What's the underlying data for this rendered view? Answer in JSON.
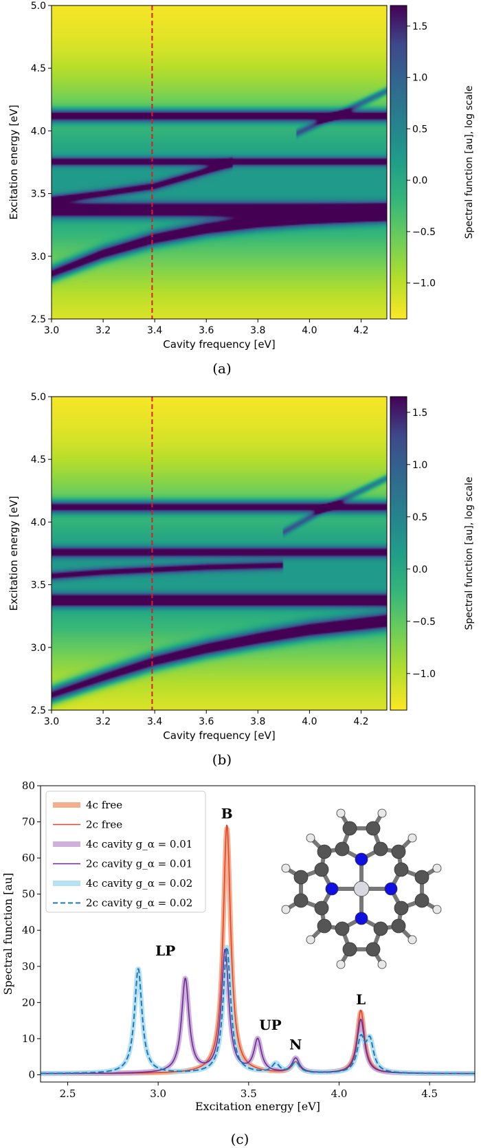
{
  "colors": {
    "viridis_dark": "#440154",
    "viridis_yellow": "#fde725",
    "free_4c": "#f0a07a",
    "free_2c": "#e8412a",
    "cavity001_4c": "#c4a2d6",
    "cavity001_2c": "#6a2b8e",
    "cavity002_4c": "#a8dcf0",
    "cavity002_2c": "#1f77b4",
    "marker_line": "#e41a1c"
  },
  "chart_data": [
    {
      "type": "heatmap",
      "panel_label": "(a)",
      "xlabel": "Cavity frequency [eV]",
      "ylabel": "Excitation energy [eV]",
      "xlim": [
        3.0,
        4.3
      ],
      "ylim": [
        2.5,
        5.0
      ],
      "xticks": [
        3.0,
        3.2,
        3.4,
        3.6,
        3.8,
        4.0,
        4.2
      ],
      "xtick_labels": [
        "3.0",
        "3.2",
        "3.4",
        "3.6",
        "3.8",
        "4.0",
        "4.2"
      ],
      "yticks": [
        2.5,
        3.0,
        3.5,
        4.0,
        4.5,
        5.0
      ],
      "ytick_labels": [
        "2.5",
        "3.0",
        "3.5",
        "4.0",
        "4.5",
        "5.0"
      ],
      "vertical_marker_x": 3.39,
      "colorbar": {
        "label": "Spectral function [au], log scale",
        "range": [
          -1.35,
          1.7
        ],
        "ticks": [
          -1.0,
          -0.5,
          0.0,
          0.5,
          1.0,
          1.5
        ],
        "tick_labels": [
          "−1.0",
          "−0.5",
          "0.0",
          "0.5",
          "1.0",
          "1.5"
        ],
        "colormap": "viridis_r"
      },
      "bands": [
        {
          "kind": "flat",
          "center": 3.37,
          "width": 0.04,
          "strength": 1.0
        },
        {
          "kind": "flat",
          "center": 4.12,
          "width": 0.035,
          "strength": 0.85
        },
        {
          "kind": "flat",
          "center": 3.755,
          "width": 0.025,
          "strength": 0.7
        },
        {
          "kind": "lower_polariton",
          "x": [
            3.0,
            3.2,
            3.4,
            3.6,
            3.8,
            4.0,
            4.3
          ],
          "y": [
            2.86,
            3.02,
            3.14,
            3.22,
            3.27,
            3.3,
            3.33
          ],
          "width": 0.04,
          "strength": 0.9
        },
        {
          "kind": "upper_polariton",
          "x": [
            3.0,
            3.2,
            3.4,
            3.5,
            3.6
          ],
          "y": [
            3.45,
            3.5,
            3.56,
            3.62,
            3.68
          ],
          "width": 0.025,
          "strength": 0.65
        },
        {
          "kind": "diagonal",
          "x": [
            3.95,
            4.1,
            4.3
          ],
          "y": [
            3.98,
            4.12,
            4.32
          ],
          "width": 0.02,
          "strength": 0.5
        }
      ]
    },
    {
      "type": "heatmap",
      "panel_label": "(b)",
      "xlabel": "Cavity frequency [eV]",
      "ylabel": "Excitation energy [eV]",
      "xlim": [
        3.0,
        4.3
      ],
      "ylim": [
        2.5,
        5.0
      ],
      "xticks": [
        3.0,
        3.2,
        3.4,
        3.6,
        3.8,
        4.0,
        4.2
      ],
      "xtick_labels": [
        "3.0",
        "3.2",
        "3.4",
        "3.6",
        "3.8",
        "4.0",
        "4.2"
      ],
      "yticks": [
        2.5,
        3.0,
        3.5,
        4.0,
        4.5,
        5.0
      ],
      "ytick_labels": [
        "2.5",
        "3.0",
        "3.5",
        "4.0",
        "4.5",
        "5.0"
      ],
      "vertical_marker_x": 3.39,
      "colorbar": {
        "label": "Spectral function [au], log scale",
        "range": [
          -1.35,
          1.65
        ],
        "ticks": [
          -1.0,
          -0.5,
          0.0,
          0.5,
          1.0,
          1.5
        ],
        "tick_labels": [
          "−1.0",
          "−0.5",
          "0.0",
          "0.5",
          "1.0",
          "1.5"
        ],
        "colormap": "viridis_r"
      },
      "bands": [
        {
          "kind": "flat",
          "center": 3.375,
          "width": 0.035,
          "strength": 1.0
        },
        {
          "kind": "flat",
          "center": 4.12,
          "width": 0.035,
          "strength": 0.8
        },
        {
          "kind": "flat",
          "center": 3.76,
          "width": 0.03,
          "strength": 0.7
        },
        {
          "kind": "lower_polariton",
          "x": [
            3.0,
            3.2,
            3.4,
            3.6,
            3.8,
            4.0,
            4.3
          ],
          "y": [
            2.62,
            2.76,
            2.89,
            2.99,
            3.07,
            3.14,
            3.21
          ],
          "width": 0.045,
          "strength": 0.95
        },
        {
          "kind": "upper_polariton",
          "x": [
            3.0,
            3.2,
            3.4,
            3.6,
            3.8
          ],
          "y": [
            3.57,
            3.6,
            3.62,
            3.64,
            3.65
          ],
          "width": 0.025,
          "strength": 0.6
        },
        {
          "kind": "diagonal",
          "x": [
            3.9,
            4.1,
            4.3
          ],
          "y": [
            3.92,
            4.15,
            4.35
          ],
          "width": 0.02,
          "strength": 0.45
        }
      ]
    },
    {
      "type": "line",
      "panel_label": "(c)",
      "xlabel": "Excitation energy [eV]",
      "ylabel": "Spectral function [au]",
      "xlim": [
        2.35,
        4.75
      ],
      "ylim": [
        -2,
        80
      ],
      "xticks": [
        2.5,
        3.0,
        3.5,
        4.0,
        4.5
      ],
      "xtick_labels": [
        "2.5",
        "3.0",
        "3.5",
        "4.0",
        "4.5"
      ],
      "yticks": [
        0,
        10,
        20,
        30,
        40,
        50,
        60,
        70,
        80
      ],
      "ytick_labels": [
        "0",
        "10",
        "20",
        "30",
        "40",
        "50",
        "60",
        "70",
        "80"
      ],
      "legend_position": "top-left",
      "series": [
        {
          "name": "4c free",
          "style": "thick",
          "color_key": "free_4c",
          "peaks": [
            [
              3.38,
              68
            ],
            [
              3.76,
              3
            ],
            [
              4.12,
              17
            ]
          ],
          "hwhm": 0.025
        },
        {
          "name": "2c free",
          "style": "thin",
          "color_key": "free_2c",
          "peaks": [
            [
              3.38,
              69
            ],
            [
              3.76,
              3
            ],
            [
              4.12,
              17.5
            ]
          ],
          "hwhm": 0.025
        },
        {
          "name": "4c cavity g_α = 0.01",
          "style": "thick",
          "color_key": "cavity001_4c",
          "peaks": [
            [
              3.15,
              26
            ],
            [
              3.37,
              34
            ],
            [
              3.55,
              9
            ],
            [
              3.76,
              4
            ],
            [
              4.12,
              15
            ]
          ],
          "hwhm": 0.025
        },
        {
          "name": "2c cavity g_α = 0.01",
          "style": "thin",
          "color_key": "cavity001_2c",
          "peaks": [
            [
              3.15,
              26
            ],
            [
              3.37,
              34
            ],
            [
              3.55,
              9
            ],
            [
              3.76,
              4
            ],
            [
              4.12,
              15
            ]
          ],
          "hwhm": 0.025
        },
        {
          "name": "4c cavity g_α = 0.02",
          "style": "thick",
          "color_key": "cavity002_4c",
          "peaks": [
            [
              2.89,
              29
            ],
            [
              3.38,
              35
            ],
            [
              3.65,
              2.5
            ],
            [
              3.76,
              3
            ],
            [
              4.12,
              9
            ],
            [
              4.17,
              8.5
            ]
          ],
          "hwhm": 0.025
        },
        {
          "name": "2c cavity g_α = 0.02",
          "style": "dashed",
          "color_key": "cavity002_2c",
          "peaks": [
            [
              2.89,
              29
            ],
            [
              3.38,
              35
            ],
            [
              3.65,
              2.5
            ],
            [
              3.76,
              3
            ],
            [
              4.12,
              9
            ],
            [
              4.17,
              8.5
            ]
          ],
          "hwhm": 0.025
        }
      ],
      "annotations": [
        {
          "text": "B",
          "x": 3.38,
          "y": 71
        },
        {
          "text": "LP",
          "x": 3.04,
          "y": 33
        },
        {
          "text": "UP",
          "x": 3.62,
          "y": 12.5
        },
        {
          "text": "N",
          "x": 3.76,
          "y": 7
        },
        {
          "text": "L",
          "x": 4.12,
          "y": 19.5
        }
      ]
    }
  ]
}
